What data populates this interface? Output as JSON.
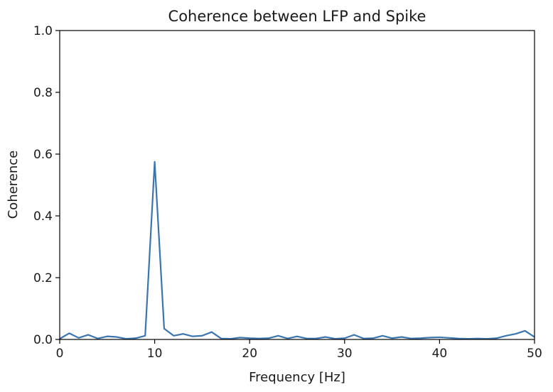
{
  "chart_data": {
    "type": "line",
    "title": "Coherence between LFP and Spike",
    "xlabel": "Frequency [Hz]",
    "ylabel": "Coherence",
    "xlim": [
      0,
      50
    ],
    "ylim": [
      0,
      1.0
    ],
    "xticks": [
      0,
      10,
      20,
      30,
      40,
      50
    ],
    "xtick_labels": [
      "0",
      "10",
      "20",
      "30",
      "40",
      "50"
    ],
    "yticks": [
      0,
      0.2,
      0.4,
      0.6,
      0.8,
      1.0
    ],
    "ytick_labels": [
      "0.0",
      "0.2",
      "0.4",
      "0.6",
      "0.8",
      "1.0"
    ],
    "grid": false,
    "line_color": "#3b75af",
    "series": [
      {
        "x": [
          0,
          1,
          2,
          3,
          4,
          5,
          6,
          7,
          8,
          9,
          10,
          11,
          12,
          13,
          14,
          15,
          16,
          17,
          18,
          19,
          20,
          21,
          22,
          23,
          24,
          25,
          26,
          27,
          28,
          29,
          30,
          31,
          32,
          33,
          34,
          35,
          36,
          37,
          38,
          39,
          40,
          41,
          42,
          43,
          44,
          45,
          46,
          47,
          48,
          49,
          50
        ],
        "values": [
          0.002,
          0.02,
          0.005,
          0.015,
          0.003,
          0.01,
          0.008,
          0.002,
          0.004,
          0.012,
          0.575,
          0.035,
          0.012,
          0.018,
          0.01,
          0.012,
          0.024,
          0.003,
          0.002,
          0.006,
          0.004,
          0.003,
          0.004,
          0.012,
          0.003,
          0.01,
          0.003,
          0.003,
          0.008,
          0.002,
          0.004,
          0.015,
          0.003,
          0.004,
          0.012,
          0.004,
          0.008,
          0.003,
          0.004,
          0.006,
          0.007,
          0.005,
          0.003,
          0.002,
          0.003,
          0.002,
          0.004,
          0.012,
          0.018,
          0.028,
          0.008
        ]
      }
    ]
  }
}
